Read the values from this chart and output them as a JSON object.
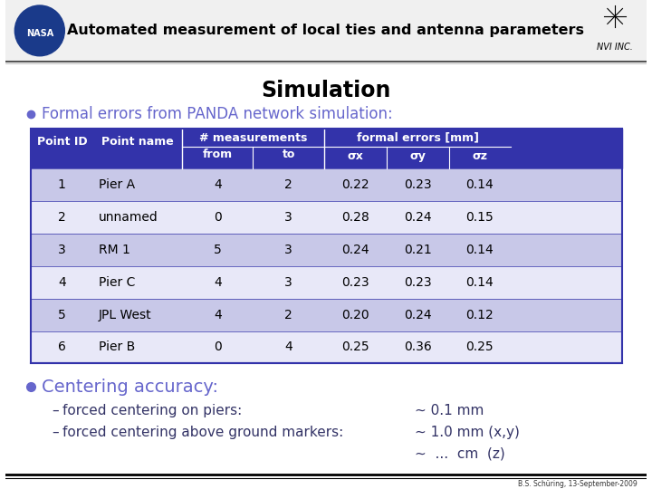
{
  "title": "Simulation",
  "bullet1": "Formal errors from PANDA network simulation:",
  "header_bg": "#3333aa",
  "header_fg": "#ffffff",
  "row_bg_odd": "#c8c8e8",
  "row_bg_even": "#e8e8f8",
  "table_border": "#3333aa",
  "col_headers": [
    "Point ID",
    "Point name",
    "# measurements\nfrom        to",
    "formal errors [mm]\nσx        σy        σz"
  ],
  "sub_headers": [
    "",
    "",
    "from\t\tto",
    "σx\t\tσy\t\tσz"
  ],
  "rows": [
    [
      "1",
      "Pier A",
      "4",
      "2",
      "0.22",
      "0.23",
      "0.14"
    ],
    [
      "2",
      "unnamed",
      "0",
      "3",
      "0.28",
      "0.24",
      "0.15"
    ],
    [
      "3",
      "RM 1",
      "5",
      "3",
      "0.24",
      "0.21",
      "0.14"
    ],
    [
      "4",
      "Pier C",
      "4",
      "3",
      "0.23",
      "0.23",
      "0.14"
    ],
    [
      "5",
      "JPL West",
      "4",
      "2",
      "0.20",
      "0.24",
      "0.12"
    ],
    [
      "6",
      "Pier B",
      "0",
      "4",
      "0.25",
      "0.36",
      "0.25"
    ]
  ],
  "bullet2": "Centering accuracy:",
  "sub_bullets": [
    [
      "forced centering on piers:",
      "~ 0.1 mm"
    ],
    [
      "forced centering above ground markers:",
      "~ 1.0 mm (x,y)"
    ]
  ],
  "sub_bullet3": "~  ...  cm  (z)",
  "footer": "B.S. Schüring, 13-September-2009",
  "title_bar_bg": "#f0f0f0",
  "slide_bg": "#ffffff",
  "header_bar_bg": "#ffffff",
  "title_color": "#000000",
  "bullet_color": "#6666cc",
  "text_color": "#000000",
  "sub_text_color": "#333366"
}
